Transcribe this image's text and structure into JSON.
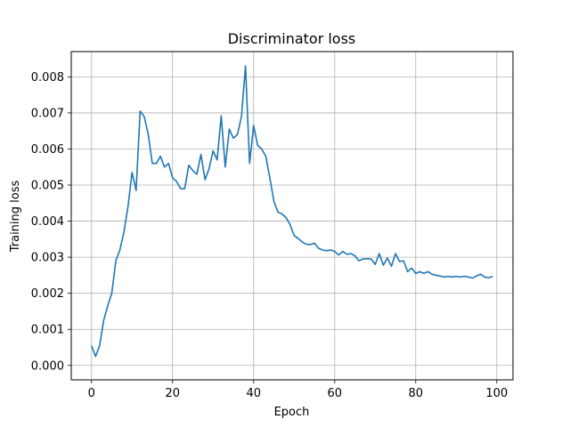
{
  "chart_data": {
    "type": "line",
    "title": "Discriminator loss",
    "xlabel": "Epoch",
    "ylabel": "Training loss",
    "xlim": [
      -5,
      104
    ],
    "ylim": [
      -0.0004,
      0.0087
    ],
    "grid": true,
    "x_ticks": [
      0,
      20,
      40,
      60,
      80,
      100
    ],
    "y_ticks": [
      0.0,
      0.001,
      0.002,
      0.003,
      0.004,
      0.005,
      0.006,
      0.007,
      0.008
    ],
    "x_tick_labels": [
      "0",
      "20",
      "40",
      "60",
      "80",
      "100"
    ],
    "y_tick_labels": [
      "0.000",
      "0.001",
      "0.002",
      "0.003",
      "0.004",
      "0.005",
      "0.006",
      "0.007",
      "0.008"
    ],
    "series": [
      {
        "color": "#1f77b4",
        "x": [
          0,
          1,
          2,
          3,
          4,
          5,
          6,
          7,
          8,
          9,
          10,
          11,
          12,
          13,
          14,
          15,
          16,
          17,
          18,
          19,
          20,
          21,
          22,
          23,
          24,
          25,
          26,
          27,
          28,
          29,
          30,
          31,
          32,
          33,
          34,
          35,
          36,
          37,
          38,
          39,
          40,
          41,
          42,
          43,
          44,
          45,
          46,
          47,
          48,
          49,
          50,
          51,
          52,
          53,
          54,
          55,
          56,
          57,
          58,
          59,
          60,
          61,
          62,
          63,
          64,
          65,
          66,
          67,
          68,
          69,
          70,
          71,
          72,
          73,
          74,
          75,
          76,
          77,
          78,
          79,
          80,
          81,
          82,
          83,
          84,
          85,
          86,
          87,
          88,
          89,
          90,
          91,
          92,
          93,
          94,
          95,
          96,
          97,
          98,
          99
        ],
        "values": [
          0.00055,
          0.00025,
          0.00055,
          0.00125,
          0.00165,
          0.002,
          0.0029,
          0.0032,
          0.0037,
          0.0044,
          0.00535,
          0.00485,
          0.00705,
          0.0069,
          0.0064,
          0.0056,
          0.0056,
          0.0058,
          0.0055,
          0.0056,
          0.0052,
          0.0051,
          0.0049,
          0.0049,
          0.00555,
          0.0054,
          0.0053,
          0.00585,
          0.00515,
          0.00545,
          0.00595,
          0.0057,
          0.00692,
          0.0055,
          0.00655,
          0.0063,
          0.0064,
          0.0069,
          0.0083,
          0.0056,
          0.00665,
          0.0061,
          0.006,
          0.0058,
          0.0052,
          0.00455,
          0.00425,
          0.0042,
          0.0041,
          0.0039,
          0.0036,
          0.00352,
          0.00342,
          0.00336,
          0.00335,
          0.00339,
          0.00325,
          0.0032,
          0.00318,
          0.0032,
          0.00316,
          0.00306,
          0.00316,
          0.00308,
          0.0031,
          0.00304,
          0.0029,
          0.00295,
          0.00296,
          0.00295,
          0.0028,
          0.0031,
          0.00278,
          0.00298,
          0.00275,
          0.0031,
          0.00288,
          0.0029,
          0.0026,
          0.0027,
          0.00255,
          0.0026,
          0.00255,
          0.0026,
          0.00253,
          0.0025,
          0.00248,
          0.00245,
          0.00247,
          0.00245,
          0.00247,
          0.00245,
          0.00247,
          0.00245,
          0.00242,
          0.00248,
          0.00253,
          0.00245,
          0.00243,
          0.00247
        ]
      }
    ]
  }
}
